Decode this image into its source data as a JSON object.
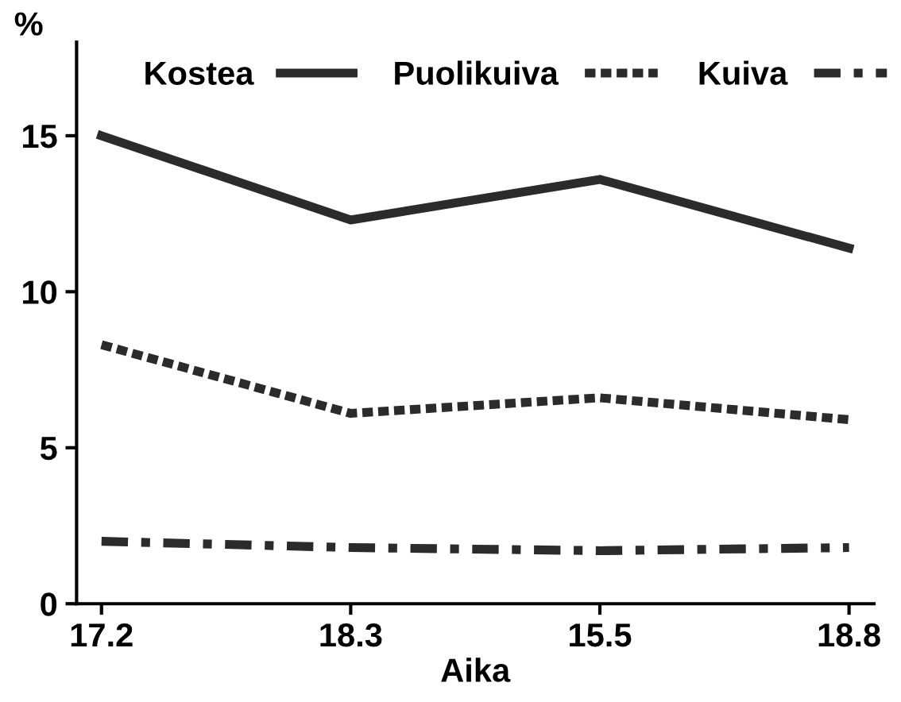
{
  "chart_data": {
    "type": "line",
    "xlabel": "Aika",
    "ylabel": "%",
    "categories": [
      "17.2",
      "18.3",
      "15.5",
      "18.8"
    ],
    "series": [
      {
        "name": "Kostea",
        "color": "#2b2b2b",
        "line_style": "solid",
        "values": [
          15.0,
          12.3,
          13.6,
          11.4
        ]
      },
      {
        "name": "Puolikuiva",
        "color": "#2b2b2b",
        "line_style": "dotted",
        "values": [
          8.3,
          6.1,
          6.6,
          5.9
        ]
      },
      {
        "name": "Kuiva",
        "color": "#2b2b2b",
        "line_style": "dashdot",
        "values": [
          2.0,
          1.8,
          1.7,
          1.8
        ]
      }
    ],
    "ylim": [
      0,
      18
    ],
    "yticks": [
      0,
      5,
      10,
      15
    ],
    "grid": false,
    "legend": "top",
    "marker": "none"
  }
}
